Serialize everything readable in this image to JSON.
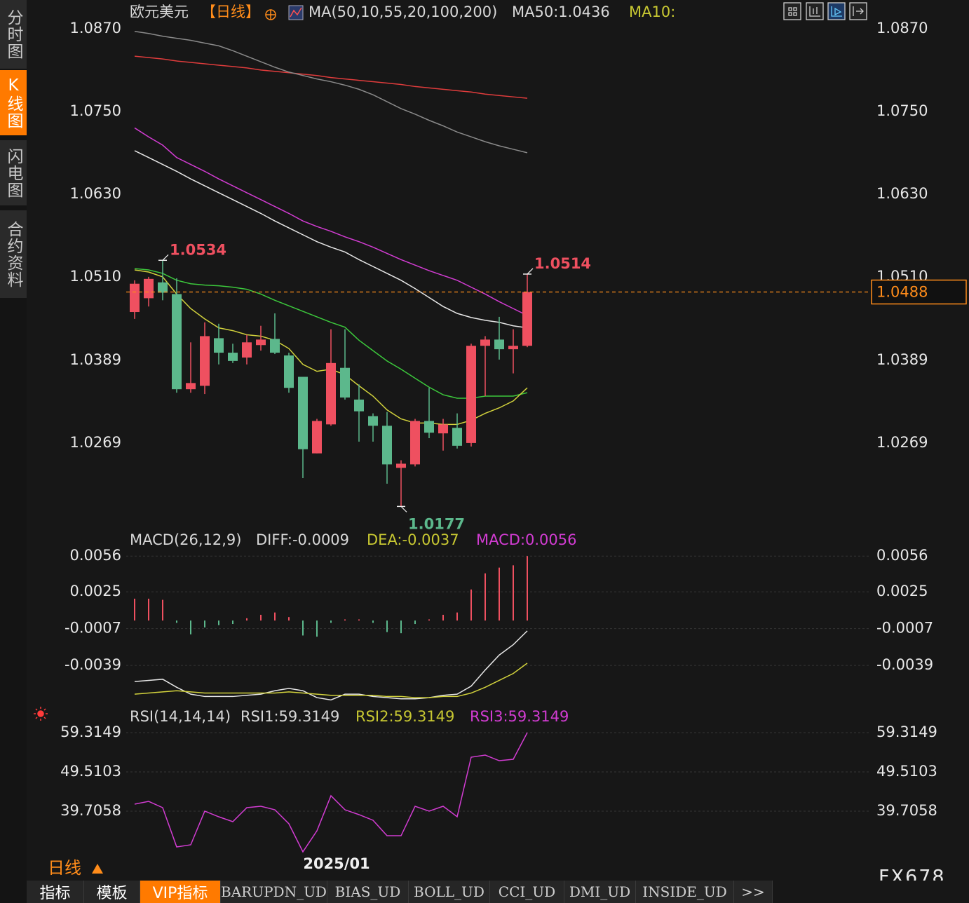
{
  "sidebar": [
    "分时图",
    "K线图",
    "闪电图",
    "合约资料"
  ],
  "tabs": [
    "指标",
    "模板",
    "VIP指标",
    "BARUPDN_UD",
    "BIAS_UD",
    "BOLL_UD",
    "CCI_UD",
    "DMI_UD",
    "INSIDE_UD",
    ">>"
  ],
  "period_label": "日线",
  "watermark": "FX678",
  "chart_data": [
    {
      "type": "candlestick",
      "title": "欧元美元",
      "subtitle": "【日线】",
      "title_color": "#d8d8d8",
      "subtitle_color": "#ff8c1a",
      "legend": [
        {
          "text": "MA(50,10,55,20,100,200)",
          "color": "#d8d8d8"
        },
        {
          "text": "MA50:1.0436",
          "color": "#d8d8d8"
        },
        {
          "text": "MA10:",
          "color": "#c8c832"
        }
      ],
      "categories": [
        null,
        null,
        null,
        null,
        null,
        null,
        null,
        null,
        null,
        null,
        null,
        null,
        null,
        null,
        "2025/01",
        null,
        null,
        null,
        null,
        null,
        null,
        null,
        null,
        null,
        null,
        null,
        null,
        null,
        null
      ],
      "open": [
        1.0459,
        1.0479,
        1.0502,
        1.0485,
        1.0347,
        1.0352,
        1.0421,
        1.04,
        1.0393,
        1.0411,
        1.042,
        1.0396,
        1.0365,
        1.0254,
        1.0296,
        1.0378,
        1.0332,
        1.0308,
        1.0294,
        1.0233,
        1.0238,
        1.0301,
        1.0283,
        1.0291,
        1.0269,
        1.041,
        1.0419,
        1.0405,
        1.041
      ],
      "high": [
        1.0505,
        1.051,
        1.0534,
        1.0508,
        1.0415,
        1.0444,
        1.0442,
        1.0413,
        1.0426,
        1.0439,
        1.0457,
        1.04,
        1.0365,
        1.0304,
        1.0434,
        1.0434,
        1.0354,
        1.0312,
        1.0314,
        1.0244,
        1.0304,
        1.0349,
        1.0304,
        1.0312,
        1.0413,
        1.0424,
        1.0452,
        1.0434,
        1.0514
      ],
      "low": [
        1.0449,
        1.0467,
        1.0476,
        1.0342,
        1.0342,
        1.034,
        1.0383,
        1.0385,
        1.0383,
        1.0403,
        1.0398,
        1.0342,
        1.0218,
        1.0254,
        1.0294,
        1.0332,
        1.0271,
        1.0271,
        1.021,
        1.0177,
        1.0235,
        1.0276,
        1.0258,
        1.0261,
        1.0264,
        1.0337,
        1.039,
        1.037,
        1.0408
      ],
      "close": [
        1.05,
        1.0507,
        1.0487,
        1.0347,
        1.0356,
        1.0424,
        1.04,
        1.0388,
        1.0415,
        1.0419,
        1.04,
        1.0349,
        1.026,
        1.0301,
        1.0385,
        1.0335,
        1.0315,
        1.0294,
        1.0238,
        1.0239,
        1.0301,
        1.0284,
        1.0296,
        1.0265,
        1.041,
        1.0419,
        1.0405,
        1.041,
        1.0488
      ],
      "up_color": "#ef5060",
      "down_color": "#5cb88c",
      "series": [
        {
          "color": "#e03c3c",
          "values": [
            1.083,
            1.0828,
            1.0826,
            1.0823,
            1.0821,
            1.0819,
            1.0817,
            1.0815,
            1.0813,
            1.081,
            1.0808,
            1.0806,
            1.0804,
            1.0802,
            1.0799,
            1.0797,
            1.0795,
            1.0793,
            1.0791,
            1.0789,
            1.0786,
            1.0784,
            1.0782,
            1.078,
            1.0778,
            1.0775,
            1.0773,
            1.0771,
            1.0769
          ]
        },
        {
          "color": "#8a8a8a",
          "values": [
            1.0866,
            1.0863,
            1.0859,
            1.0856,
            1.0853,
            1.0849,
            1.0845,
            1.0838,
            1.083,
            1.0822,
            1.0814,
            1.0807,
            1.0802,
            1.0797,
            1.0793,
            1.0788,
            1.0782,
            1.0774,
            1.0764,
            1.0754,
            1.0746,
            1.0737,
            1.0729,
            1.072,
            1.0713,
            1.0706,
            1.07,
            1.0695,
            1.069
          ]
        },
        {
          "color": "#d23cd2",
          "values": [
            1.0726,
            1.0713,
            1.0701,
            1.0683,
            1.0673,
            1.0663,
            1.0652,
            1.0642,
            1.0632,
            1.0622,
            1.0612,
            1.0602,
            1.0591,
            1.0583,
            1.0576,
            1.0568,
            1.0561,
            1.0553,
            1.0544,
            1.0535,
            1.0527,
            1.0519,
            1.0512,
            1.0505,
            1.0495,
            1.0485,
            1.0474,
            1.0464,
            1.0454
          ]
        },
        {
          "color": "#e6e6e6",
          "values": [
            1.0693,
            1.0683,
            1.0673,
            1.0663,
            1.0652,
            1.0642,
            1.0632,
            1.0622,
            1.0612,
            1.0602,
            1.0591,
            1.0581,
            1.0571,
            1.0561,
            1.0553,
            1.0546,
            1.0535,
            1.0525,
            1.0515,
            1.0505,
            1.0493,
            1.048,
            1.0467,
            1.0457,
            1.0451,
            1.0447,
            1.0444,
            1.0439,
            1.0436
          ]
        },
        {
          "color": "#3cc83c",
          "values": [
            1.0522,
            1.052,
            1.0515,
            1.0505,
            1.05,
            1.0498,
            1.0497,
            1.0495,
            1.0492,
            1.0485,
            1.0476,
            1.0468,
            1.046,
            1.0452,
            1.0444,
            1.0437,
            1.0418,
            1.0403,
            1.0388,
            1.0376,
            1.0363,
            1.035,
            1.0339,
            1.0334,
            1.0334,
            1.0337,
            1.0337,
            1.0337,
            1.0342
          ]
        },
        {
          "color": "#d2d23c",
          "values": [
            1.052,
            1.0517,
            1.051,
            1.0485,
            1.0464,
            1.0449,
            1.0436,
            1.0432,
            1.0426,
            1.0424,
            1.0418,
            1.0406,
            1.0383,
            1.0373,
            1.0376,
            1.0368,
            1.0352,
            1.0337,
            1.0317,
            1.0304,
            1.0298,
            1.0298,
            1.0296,
            1.0296,
            1.0302,
            1.0312,
            1.032,
            1.033,
            1.0349
          ]
        }
      ],
      "extremes": [
        1.0534,
        1.0514,
        1.0177
      ],
      "last_price": 1.0488,
      "last_price_color": "#ff8c1a",
      "ylim": [
        1.0154,
        1.0881
      ],
      "yticks": [
        {
          "value": 1.087,
          "label": "1.0870"
        },
        {
          "value": 1.075,
          "label": "1.0750"
        },
        {
          "value": 1.063,
          "label": "1.0630"
        },
        {
          "value": 1.051,
          "label": "1.0510"
        },
        1.0389,
        1.0269
      ],
      "grid": false
    },
    {
      "type": "macd",
      "legend": [
        {
          "text": "MACD(26,12,9)",
          "color": "#d8d8d8"
        },
        {
          "text": "DIFF:-0.0009",
          "color": "#d8d8d8"
        },
        {
          "text": "DEA:-0.0037",
          "color": "#c8c832"
        },
        {
          "text": "MACD:0.0056",
          "color": "#d23cd2"
        }
      ],
      "values": [
        0.0019,
        0.0019,
        0.0018,
        -0.0002,
        -0.0012,
        -0.0006,
        -0.0004,
        -0.0003,
        0.0002,
        0.0005,
        0.0007,
        0.0003,
        -0.0013,
        -0.0014,
        -0.0002,
        0.0001,
        0.0001,
        -0.0002,
        -0.001,
        -0.0011,
        -0.0003,
        0.0001,
        0.0005,
        0.0007,
        0.0027,
        0.0041,
        0.0046,
        0.0048,
        0.0056
      ],
      "up_color": "#ef5060",
      "down_color": "#5cb88c",
      "series": [
        {
          "color": "#e6e6e6",
          "values": [
            -0.0053,
            -0.0052,
            -0.0051,
            -0.0058,
            -0.0064,
            -0.0066,
            -0.0066,
            -0.0066,
            -0.0065,
            -0.0064,
            -0.0061,
            -0.0059,
            -0.0061,
            -0.0067,
            -0.0069,
            -0.0064,
            -0.0064,
            -0.0066,
            -0.0067,
            -0.0068,
            -0.0068,
            -0.0067,
            -0.0065,
            -0.0064,
            -0.0057,
            -0.0043,
            -0.003,
            -0.0021,
            -0.0009
          ]
        },
        {
          "color": "#d2d23c",
          "values": [
            -0.0064,
            -0.0063,
            -0.0062,
            -0.0061,
            -0.0062,
            -0.0063,
            -0.0063,
            -0.0063,
            -0.0063,
            -0.0063,
            -0.0063,
            -0.0062,
            -0.0063,
            -0.0064,
            -0.0065,
            -0.0065,
            -0.0065,
            -0.0065,
            -0.0066,
            -0.0066,
            -0.0067,
            -0.0067,
            -0.0066,
            -0.0066,
            -0.0063,
            -0.0058,
            -0.0052,
            -0.0046,
            -0.0037
          ]
        }
      ],
      "ylim": [
        -0.007,
        0.0061
      ],
      "yticks": [
        0.0056,
        0.0025,
        -0.0007,
        -0.0039
      ],
      "grid": true
    },
    {
      "type": "line",
      "legend": [
        {
          "text": "RSI(14,14,14)",
          "color": "#d8d8d8"
        },
        {
          "text": "RSI1:59.3149",
          "color": "#d8d8d8"
        },
        {
          "text": "RSI2:59.3149",
          "color": "#c8c832"
        },
        {
          "text": "RSI3:59.3149",
          "color": "#d23cd2"
        }
      ],
      "series": [
        {
          "color": "#d23cd2",
          "values": [
            41.45,
            42.15,
            40.58,
            30.77,
            31.3,
            39.71,
            38.3,
            37.08,
            40.58,
            40.93,
            40.05,
            36.55,
            29.55,
            34.8,
            43.56,
            40.05,
            38.83,
            37.43,
            33.57,
            33.57,
            40.93,
            39.71,
            40.93,
            38.3,
            53.19,
            53.71,
            52.31,
            52.66,
            59.3149
          ]
        }
      ],
      "ylim": [
        28.67,
        61.07
      ],
      "yticks": [
        59.3149,
        49.5103,
        39.7058
      ],
      "grid": true
    }
  ]
}
